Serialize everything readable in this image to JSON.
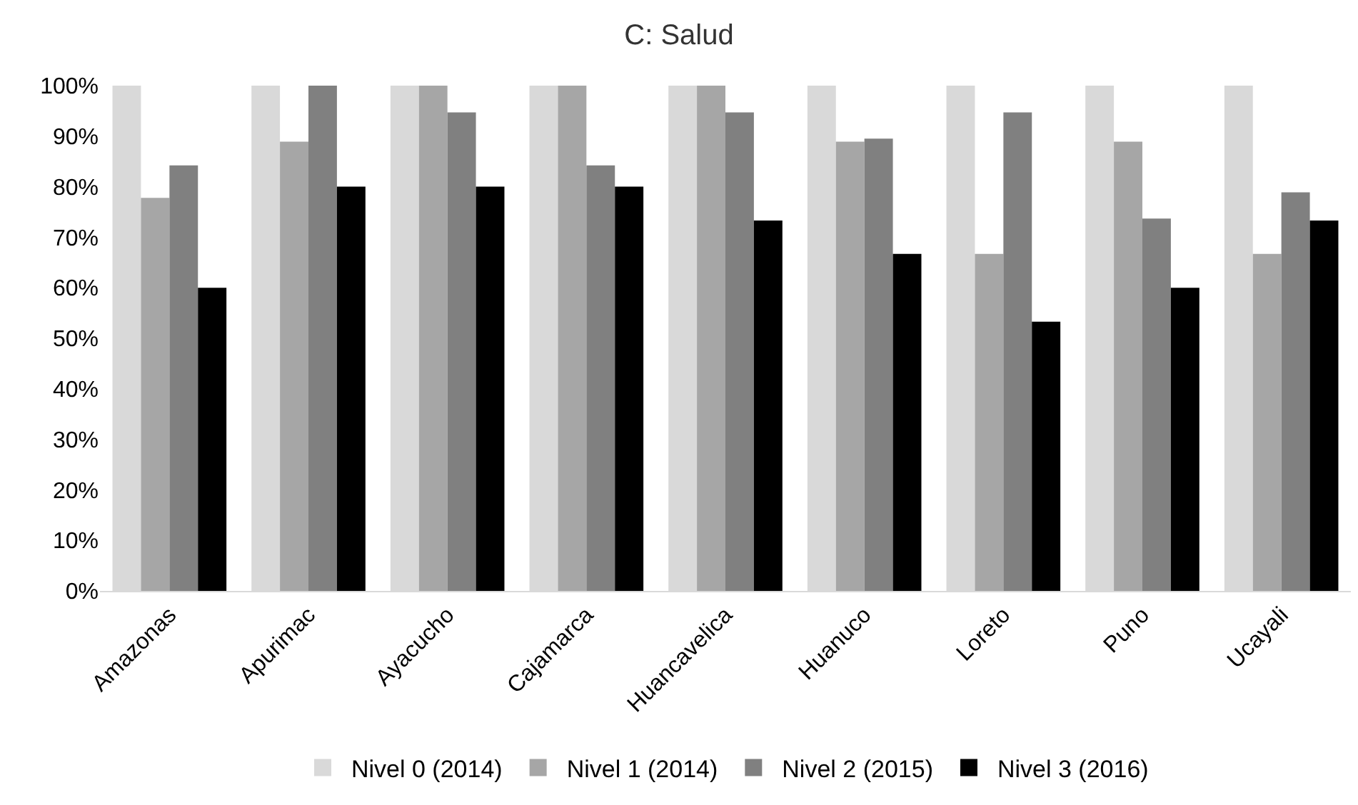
{
  "chart_data": {
    "type": "bar",
    "title": "C: Salud",
    "categories": [
      "Amazonas",
      "Apurimac",
      "Ayacucho",
      "Cajamarca",
      "Huancavelica",
      "Huanuco",
      "Loreto",
      "Puno",
      "Ucayali"
    ],
    "series": [
      {
        "name": "Nivel 0 (2014)",
        "color": "#d9d9d9",
        "values": [
          100,
          100,
          100,
          100,
          100,
          100,
          100,
          100,
          100
        ]
      },
      {
        "name": "Nivel 1 (2014)",
        "color": "#a6a6a6",
        "values": [
          77.8,
          88.9,
          100,
          100,
          100,
          88.9,
          66.7,
          88.9,
          66.7
        ]
      },
      {
        "name": "Nivel 2 (2015)",
        "color": "#808080",
        "values": [
          84.2,
          100,
          94.7,
          84.2,
          94.7,
          89.5,
          94.7,
          73.7,
          78.9
        ]
      },
      {
        "name": "Nivel 3 (2016)",
        "color": "#000000",
        "values": [
          60,
          80,
          80,
          80,
          73.3,
          66.7,
          53.3,
          60,
          73.3
        ]
      }
    ],
    "ylim": [
      0,
      100
    ],
    "yticks": [
      {
        "value": 0,
        "label": "0%"
      },
      {
        "value": 10,
        "label": "10%"
      },
      {
        "value": 20,
        "label": "20%"
      },
      {
        "value": 30,
        "label": "30%"
      },
      {
        "value": 40,
        "label": "40%"
      },
      {
        "value": 50,
        "label": "50%"
      },
      {
        "value": 60,
        "label": "60%"
      },
      {
        "value": 70,
        "label": "70%"
      },
      {
        "value": 80,
        "label": "80%"
      },
      {
        "value": 90,
        "label": "90%"
      },
      {
        "value": 100,
        "label": "100%"
      }
    ],
    "grid": false,
    "legend": "bottom"
  }
}
